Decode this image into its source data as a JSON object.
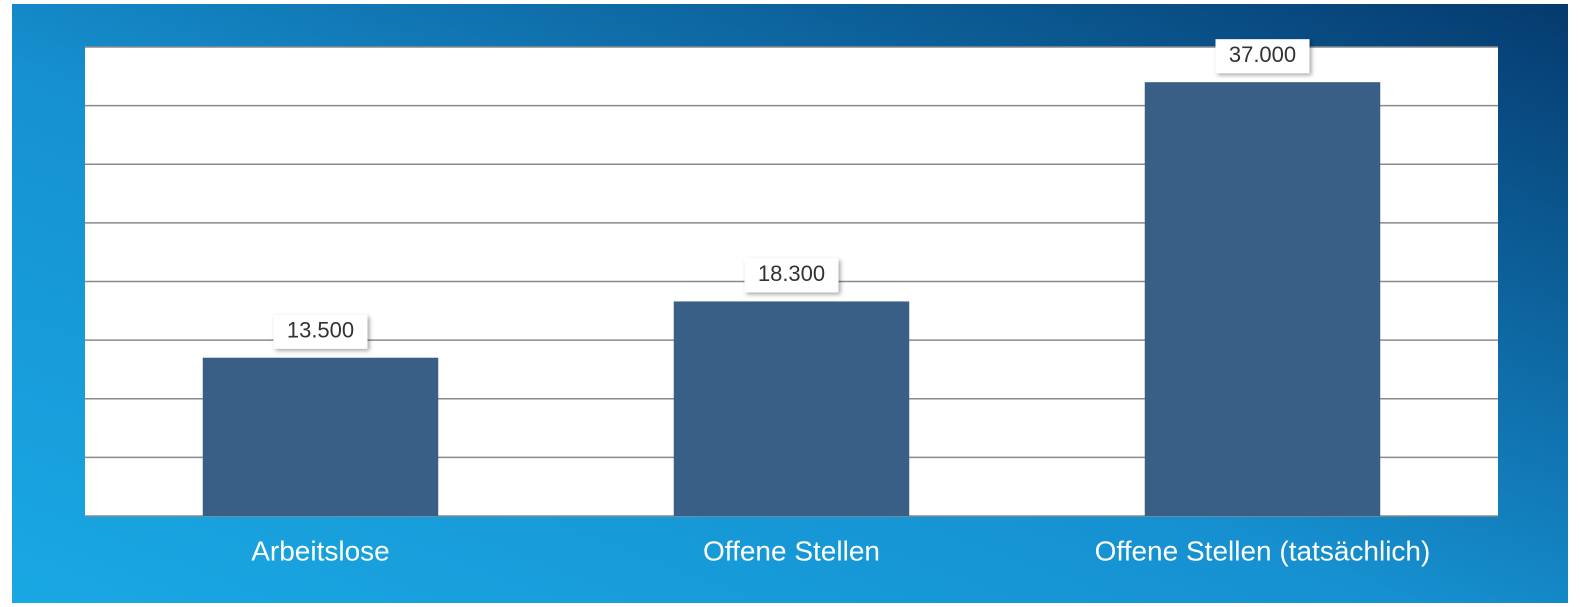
{
  "chart_data": {
    "type": "bar",
    "categories": [
      "Arbeitslose",
      "Offene Stellen",
      "Offene Stellen (tatsächlich)"
    ],
    "values": [
      13500,
      18300,
      37000
    ],
    "value_labels": [
      "13.500",
      "18.300",
      "37.000"
    ],
    "color": "#3a5f87",
    "ylim": [
      0,
      40000
    ],
    "yticks": [
      0,
      5000,
      10000,
      15000,
      20000,
      25000,
      30000,
      35000,
      40000
    ],
    "grid": true
  }
}
